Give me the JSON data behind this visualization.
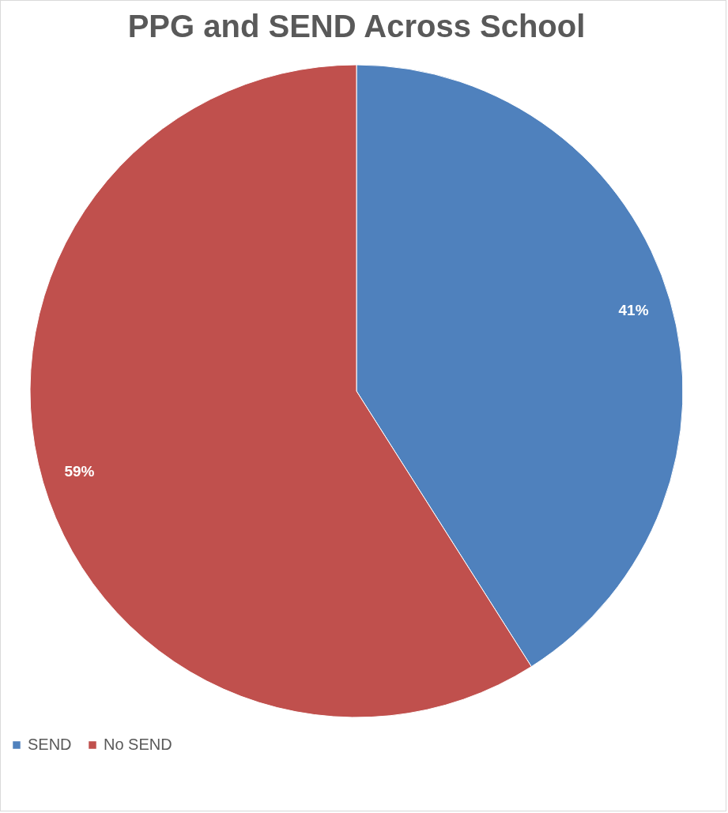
{
  "chart_data": {
    "type": "pie",
    "title": "PPG and SEND Across School",
    "categories": [
      "SEND",
      "No SEND"
    ],
    "values": [
      41,
      59
    ],
    "colors": [
      "#4f81bd",
      "#c0504d"
    ],
    "value_labels": [
      "41%",
      "59%"
    ],
    "legend": "bottom"
  }
}
